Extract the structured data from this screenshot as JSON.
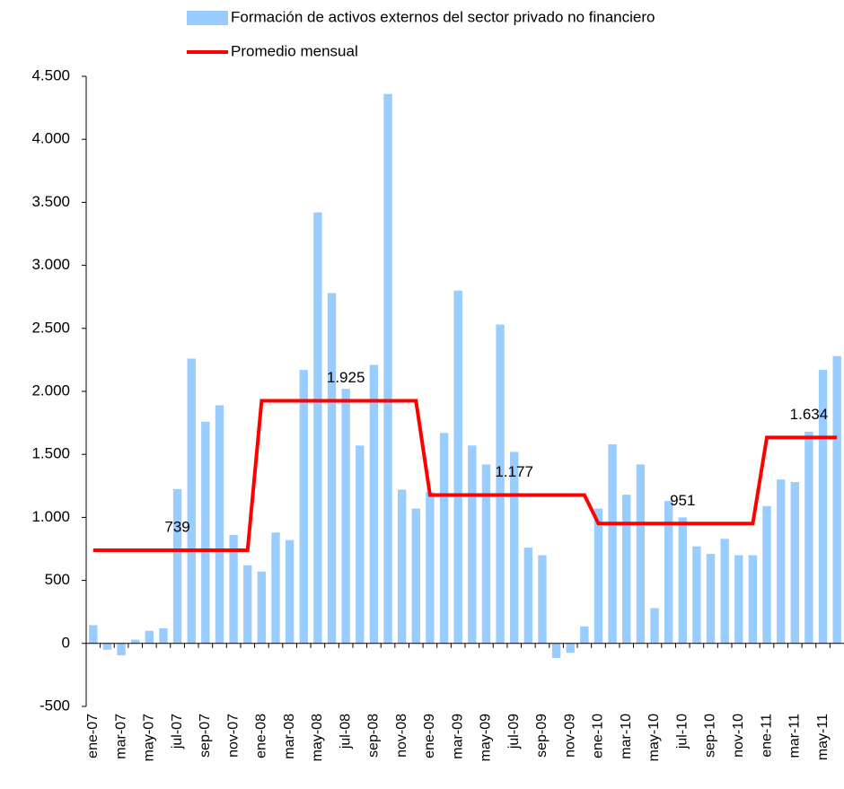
{
  "chart_data": {
    "type": "bar-line",
    "categories": [
      "ene-07",
      null,
      "mar-07",
      null,
      "may-07",
      null,
      "jul-07",
      null,
      "sep-07",
      null,
      "nov-07",
      null,
      "ene-08",
      null,
      "mar-08",
      null,
      "may-08",
      null,
      "jul-08",
      null,
      "sep-08",
      null,
      "nov-08",
      null,
      "ene-09",
      null,
      "mar-09",
      null,
      "may-09",
      null,
      "jul-09",
      null,
      "sep-09",
      null,
      "nov-09",
      null,
      "ene-10",
      null,
      "mar-10",
      null,
      "may-10",
      null,
      "jul-10",
      null,
      "sep-10",
      null,
      "nov-10",
      null,
      "ene-11",
      null,
      "mar-11",
      null,
      "may-11",
      null
    ],
    "series": [
      {
        "name": "Formación de activos externos del sector privado no financiero",
        "type": "bar",
        "color": "#99ccff",
        "values": [
          145,
          -50,
          -95,
          30,
          100,
          120,
          1225,
          2260,
          1760,
          1890,
          860,
          620,
          570,
          880,
          820,
          2170,
          3420,
          2780,
          2020,
          1570,
          2210,
          4360,
          1220,
          1070,
          1200,
          1670,
          2800,
          1570,
          1420,
          2530,
          1520,
          760,
          700,
          -115,
          -75,
          135,
          1070,
          1580,
          1180,
          1420,
          280,
          1130,
          1000,
          770,
          710,
          830,
          700,
          700,
          1090,
          1300,
          1280,
          1680,
          2170,
          2280
        ]
      },
      {
        "name": "Promedio mensual",
        "type": "line",
        "color": "#ff0000",
        "values": [
          739,
          739,
          739,
          739,
          739,
          739,
          739,
          739,
          739,
          739,
          739,
          739,
          1925,
          1925,
          1925,
          1925,
          1925,
          1925,
          1925,
          1925,
          1925,
          1925,
          1925,
          1925,
          1177,
          1177,
          1177,
          1177,
          1177,
          1177,
          1177,
          1177,
          1177,
          1177,
          1177,
          1177,
          951,
          951,
          951,
          951,
          951,
          951,
          951,
          951,
          951,
          951,
          951,
          951,
          1634,
          1634,
          1634,
          1634,
          1634,
          1634
        ],
        "value_labels": [
          null,
          null,
          null,
          null,
          null,
          null,
          "739",
          null,
          null,
          null,
          null,
          null,
          null,
          null,
          null,
          null,
          null,
          null,
          "1.925",
          null,
          null,
          null,
          null,
          null,
          null,
          null,
          null,
          null,
          null,
          null,
          "1.177",
          null,
          null,
          null,
          null,
          null,
          null,
          null,
          null,
          null,
          null,
          null,
          "951",
          null,
          null,
          null,
          null,
          null,
          null,
          null,
          null,
          "1.634",
          null,
          null
        ]
      }
    ],
    "ylim": [
      -500,
      4500
    ],
    "yticks": [
      -500,
      0,
      500,
      {
        "value": 1000,
        "label": "1.000"
      },
      {
        "value": 1500,
        "label": "1.500"
      },
      {
        "value": 2000,
        "label": "2.000"
      },
      {
        "value": 2500,
        "label": "2.500"
      },
      {
        "value": 3000,
        "label": "3.000"
      },
      {
        "value": 3500,
        "label": "3.500"
      },
      {
        "value": 4000,
        "label": "4.000"
      },
      {
        "value": 4500,
        "label": "4.500"
      }
    ],
    "grid": false,
    "legend": "top"
  }
}
